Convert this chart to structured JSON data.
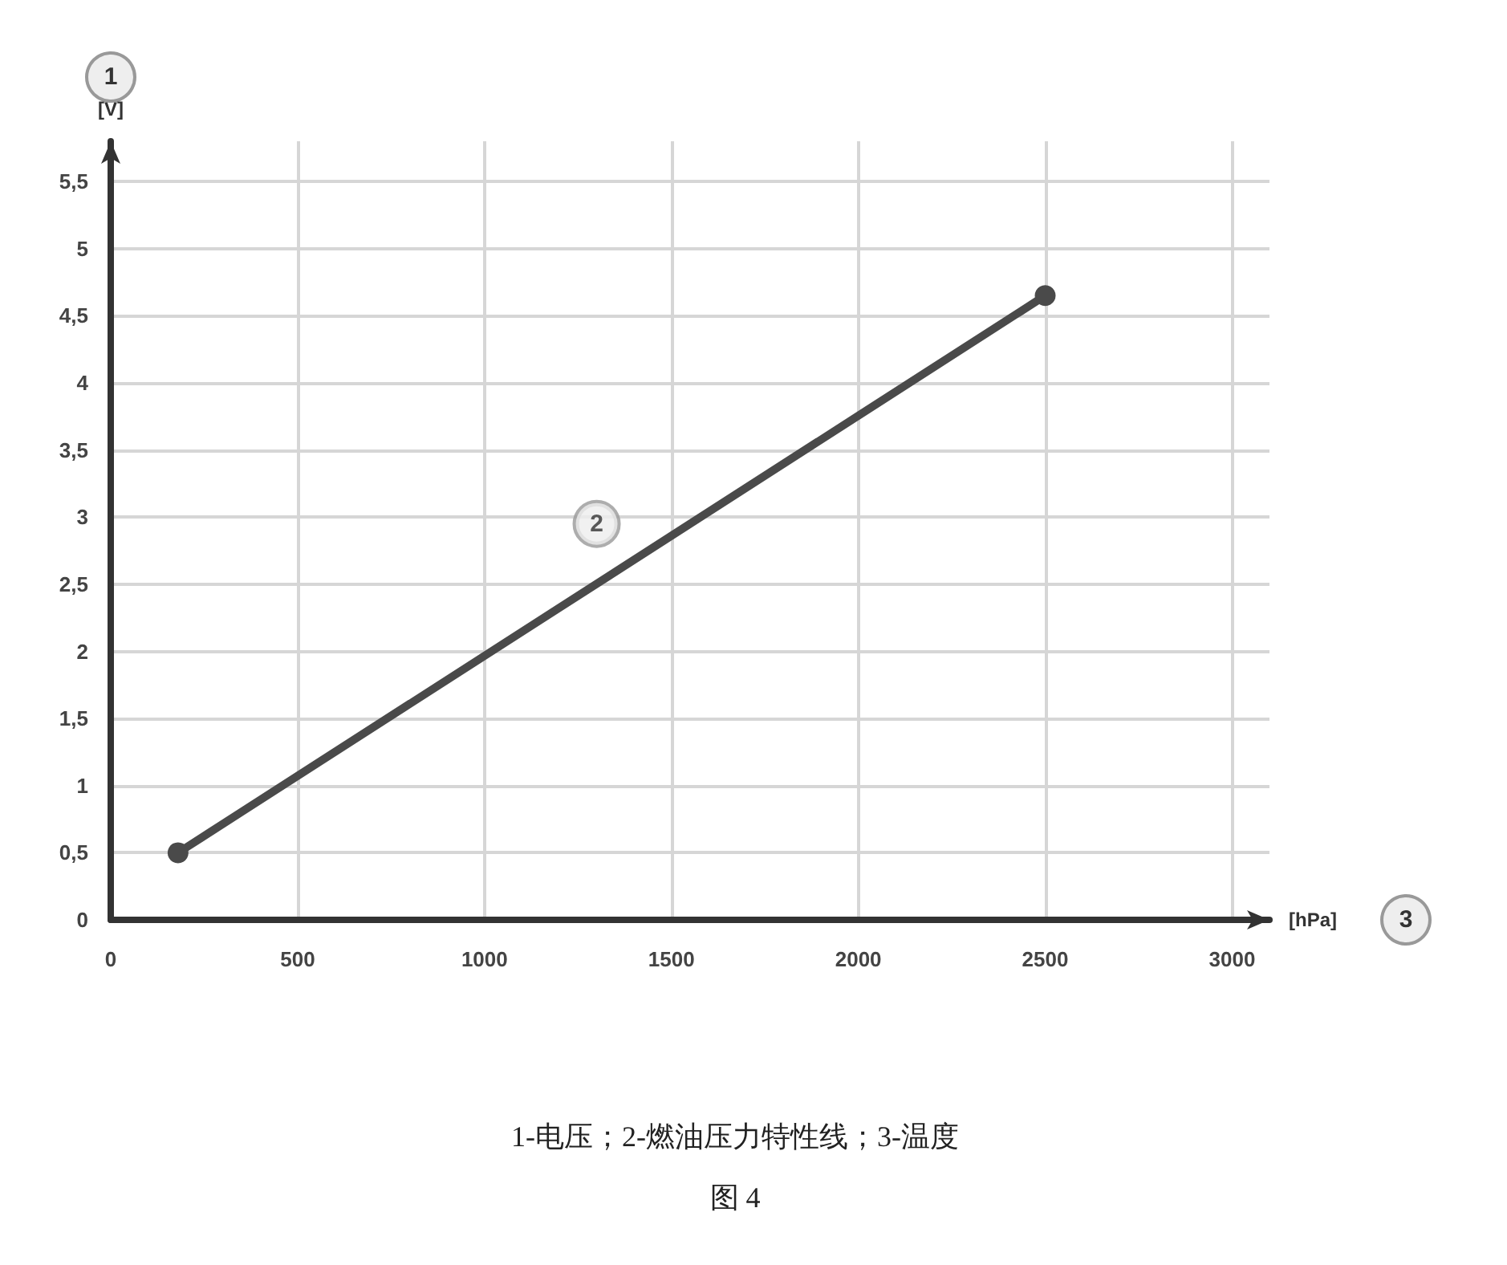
{
  "chart_data": {
    "type": "line",
    "xlabel": "[hPa]",
    "ylabel": "[V]",
    "x": [
      180,
      2500
    ],
    "series": [
      {
        "color": "#4a4a4a",
        "values": [
          0.5,
          4.65
        ]
      }
    ],
    "xlim": [
      0,
      3100
    ],
    "ylim": [
      0,
      5.8
    ],
    "xticks": [
      0,
      500,
      1000,
      1500,
      2000,
      2500,
      3000
    ],
    "yticks": [
      0,
      {
        "value": 0.5,
        "label": "0,5"
      },
      1,
      {
        "value": 1.5,
        "label": "1,5"
      },
      2,
      {
        "value": 2.5,
        "label": "2,5"
      },
      3,
      {
        "value": 3.5,
        "label": "3,5"
      },
      4,
      {
        "value": 4.5,
        "label": "4,5"
      },
      5,
      {
        "value": 5.5,
        "label": "5,5"
      }
    ],
    "grid": true,
    "marker": "circle",
    "line_style": "solid",
    "annotations": [
      "1",
      "3",
      {
        "text": "2",
        "x": 1300,
        "y": 2.95
      },
      "1-电压；2-燃油压力特性线；3-温度",
      "图 4"
    ]
  }
}
